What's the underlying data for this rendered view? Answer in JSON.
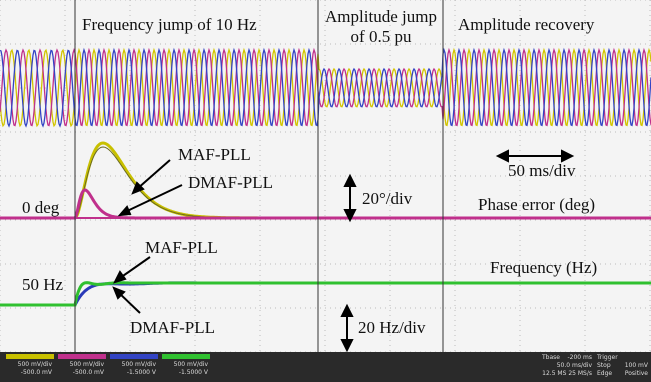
{
  "annotations": {
    "frequency_jump": "Frequency jump of 10 Hz",
    "amplitude_jump_1": "Amplitude jump",
    "amplitude_jump_2": "of 0.5 pu",
    "amplitude_recovery": "Amplitude recovery",
    "time_scale": "50 ms/div",
    "phase_maf": "MAF-PLL",
    "phase_dmaf": "DMAF-PLL",
    "phase_zero": "0 deg",
    "phase_scale": "20°/div",
    "phase_title": "Phase error (deg)",
    "freq_maf": "MAF-PLL",
    "freq_title": "Frequency (Hz)",
    "freq_base": "50 Hz",
    "freq_dmaf": "DMAF-PLL",
    "freq_scale": "20 Hz/div"
  },
  "status_bar": {
    "channels": [
      {
        "scale": "500 mV/div",
        "offset": "-500.0 mV"
      },
      {
        "scale": "500 mV/div",
        "offset": "-500.0 mV"
      },
      {
        "scale": "500 mV/div",
        "offset": "-1.5000 V"
      },
      {
        "scale": "500 mV/div",
        "offset": "-1.5000 V"
      }
    ],
    "timebase": {
      "title": "Tbase",
      "delay": "-200 ms",
      "scale": "50.0 ms/div",
      "rate": "12.5 MS 25 MS/s"
    },
    "trigger": {
      "title": "Trigger",
      "mode": "Stop",
      "level": "100 mV",
      "type": "Edge",
      "slope": "Positive"
    }
  }
}
